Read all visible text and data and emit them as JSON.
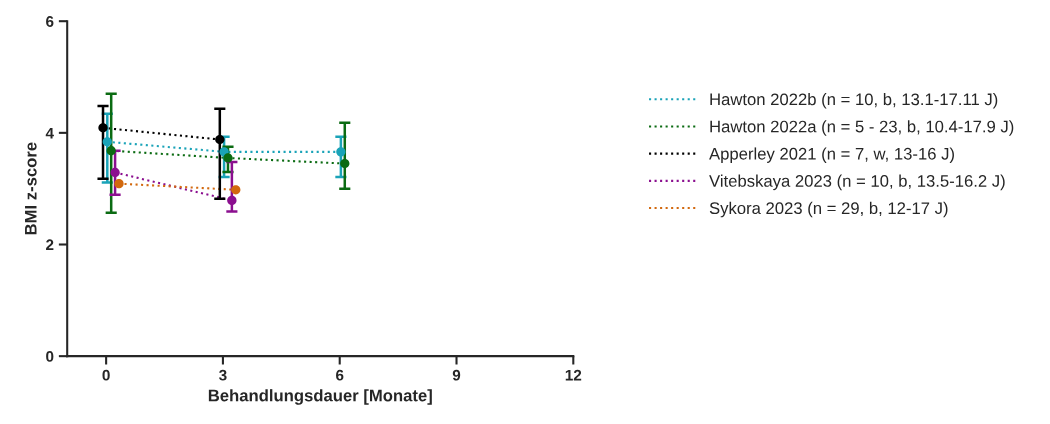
{
  "chart_data": {
    "type": "line",
    "xlabel": "Behandlungsdauer [Monate]",
    "ylabel": "BMI z-score",
    "xlim": [
      -1,
      12
    ],
    "xticks": [
      0,
      3,
      6,
      9,
      12
    ],
    "ylim": [
      0,
      6
    ],
    "yticks": [
      0,
      2,
      4,
      6
    ],
    "grid": false,
    "legend": "right",
    "marker": "circle",
    "line_style": "dotted",
    "series": [
      {
        "name": "Hawton 2022b (n = 10, b, 13.1-17.11 J)",
        "color": "#1aa3b8",
        "x": [
          0.03,
          3.03,
          6.03
        ],
        "values": [
          3.84,
          3.66,
          3.66
        ],
        "errors": [
          [
            3.11,
            4.34
          ],
          [
            3.21,
            3.93
          ],
          [
            3.21,
            3.93
          ]
        ]
      },
      {
        "name": "Hawton 2022a (n = 5 - 23, b, 10.4-17.9 J)",
        "color": "#0b6b12",
        "x": [
          0.13,
          3.13,
          6.13
        ],
        "values": [
          3.68,
          3.55,
          3.45
        ],
        "errors": [
          [
            2.57,
            4.7
          ],
          [
            3.3,
            3.75
          ],
          [
            3.0,
            4.18
          ]
        ]
      },
      {
        "name": "Apperley 2021 (n = 7, w, 13-16 J)",
        "color": "#000000",
        "x": [
          -0.08,
          2.92
        ],
        "values": [
          4.09,
          3.88
        ],
        "errors": [
          [
            3.18,
            4.48
          ],
          [
            2.82,
            4.43
          ]
        ]
      },
      {
        "name": "Vitebskaya 2023 (n = 10, b, 13.5-16.2 J)",
        "color": "#8b0f8f",
        "x": [
          0.23,
          3.23
        ],
        "values": [
          3.29,
          2.79
        ],
        "errors": [
          [
            2.89,
            3.68
          ],
          [
            2.59,
            3.48
          ]
        ]
      },
      {
        "name": "Sykora 2023 (n = 29, b, 12-17 J)",
        "color": "#d2690f",
        "x": [
          0.33,
          3.33
        ],
        "values": [
          3.09,
          2.98
        ]
      }
    ]
  }
}
